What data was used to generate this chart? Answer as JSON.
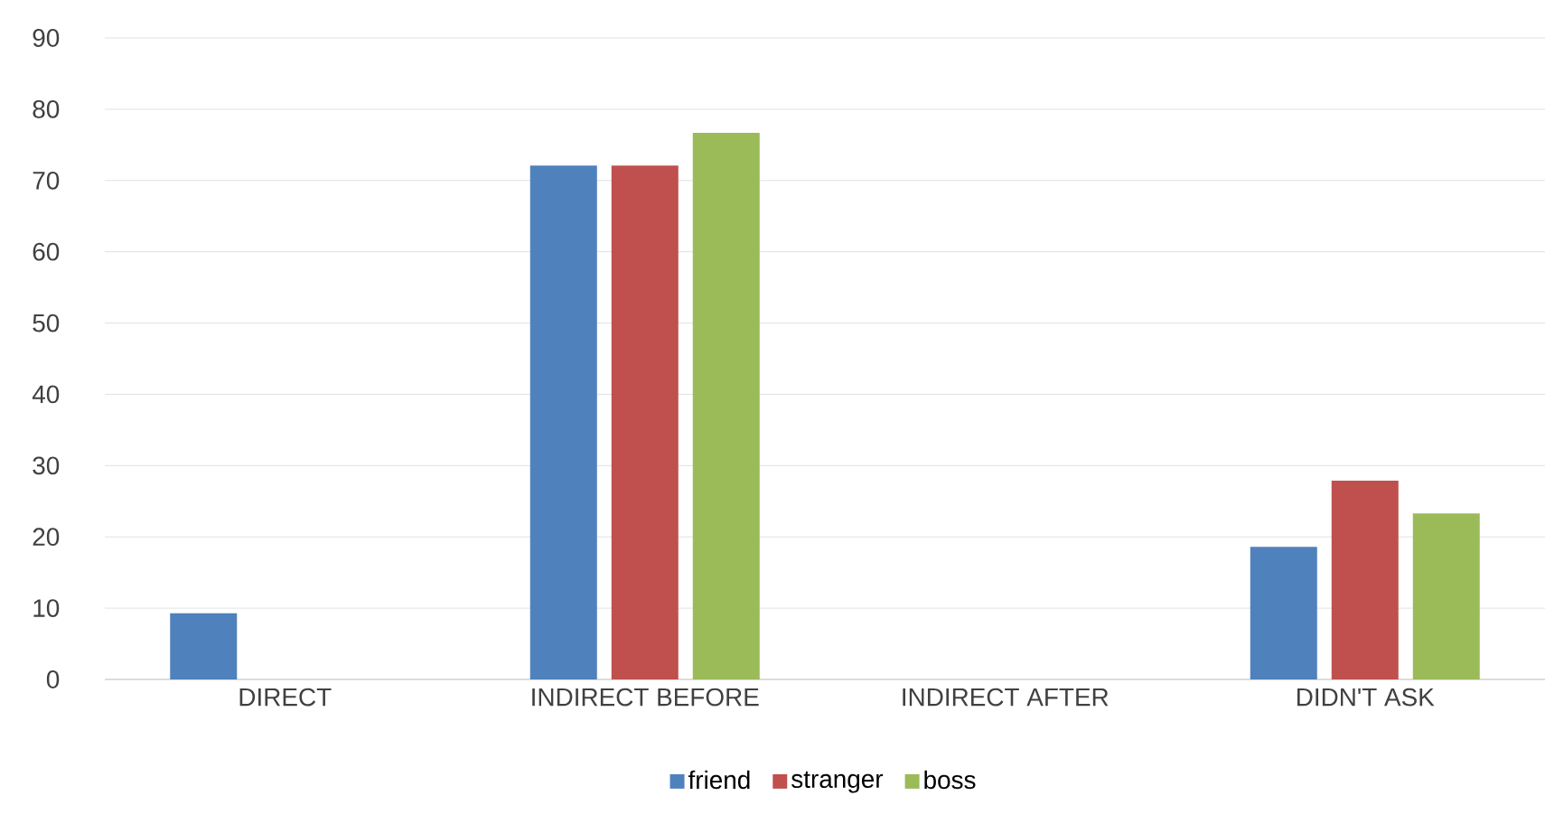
{
  "chart_data": {
    "type": "bar",
    "categories": [
      "DIRECT",
      "INDIRECT BEFORE",
      "INDIRECT AFTER",
      "DIDN'T ASK"
    ],
    "series": [
      {
        "name": "friend",
        "color": "#4f81bd",
        "values": [
          9.3,
          72.1,
          0,
          18.6
        ]
      },
      {
        "name": "stranger",
        "color": "#c0504d",
        "values": [
          0,
          72.1,
          0,
          27.9
        ]
      },
      {
        "name": "boss",
        "color": "#9bbb59",
        "values": [
          0,
          76.7,
          0,
          23.3
        ]
      }
    ],
    "ylim": [
      0,
      90
    ],
    "yticks": [
      0,
      10,
      20,
      30,
      40,
      50,
      60,
      70,
      80,
      90
    ],
    "grid": "y",
    "legend": "bottom"
  }
}
